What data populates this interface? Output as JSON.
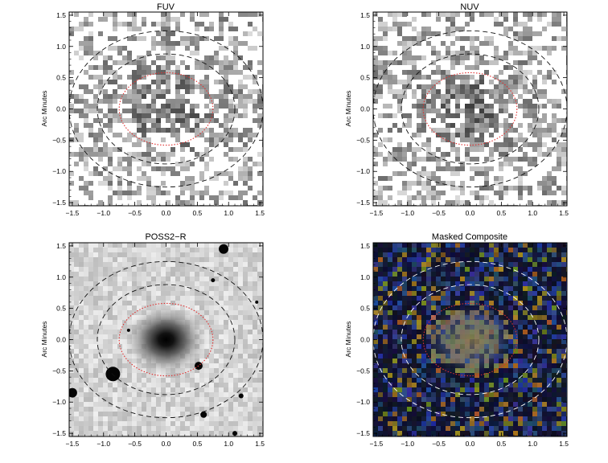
{
  "figure": {
    "ylabel": "Arc Minutes",
    "ticks": [
      -1.5,
      -1.0,
      -0.5,
      0.0,
      0.5,
      1.0,
      1.5
    ],
    "tick_labels": [
      "−1.5",
      "−1.0",
      "−0.5",
      "0.0",
      "0.5",
      "1.0",
      "1.5"
    ],
    "axis_range": [
      -1.55,
      1.55
    ],
    "colors": {
      "inner_ellipse": "#e03030",
      "outer_ellipse_dark": "#111111",
      "outer_ellipse_light": "#ffffff"
    },
    "panels": [
      {
        "title": "FUV",
        "style": "sparse-gray"
      },
      {
        "title": "NUV",
        "style": "sparse-gray"
      },
      {
        "title": "POSS2−R",
        "style": "optical"
      },
      {
        "title": "Masked Composite",
        "style": "composite"
      }
    ]
  }
}
